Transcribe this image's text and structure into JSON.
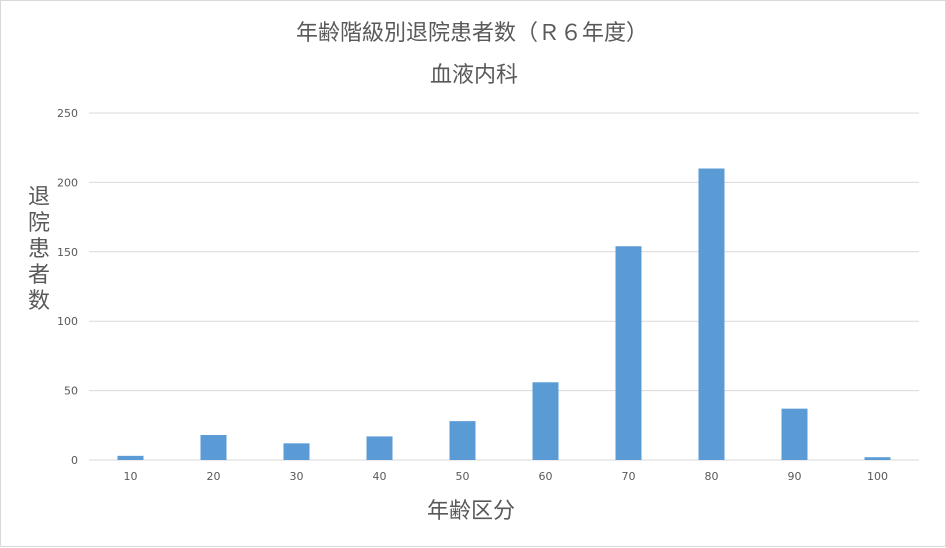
{
  "chart_data": {
    "type": "bar",
    "title": "年齢階級別退院患者数（Ｒ６年度）",
    "subtitle": "血液内科",
    "xlabel": "年齢区分",
    "ylabel": "退院患者数",
    "categories": [
      "10",
      "20",
      "30",
      "40",
      "50",
      "60",
      "70",
      "80",
      "90",
      "100"
    ],
    "series": [
      {
        "values": [
          3,
          18,
          12,
          17,
          28,
          56,
          154,
          210,
          37,
          2
        ]
      }
    ],
    "ylim": [
      0,
      250
    ],
    "yticks": [
      "0",
      "50",
      "100",
      "150",
      "200",
      "250"
    ],
    "grid": true,
    "legend": "none",
    "colors": {
      "bar": "#5b9bd5",
      "grid": "#d9d9d9",
      "text": "#595959"
    }
  }
}
